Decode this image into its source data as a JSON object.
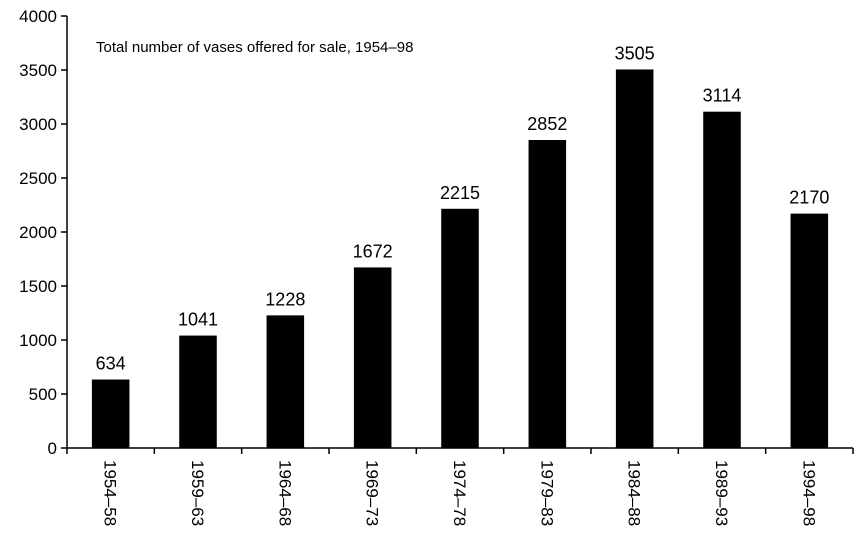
{
  "chart_data": {
    "type": "bar",
    "title": "Total number of vases offered for sale, 1954–98",
    "xlabel": "",
    "ylabel": "",
    "ylim": [
      0,
      4000
    ],
    "yticks": [
      0,
      500,
      1000,
      1500,
      2000,
      2500,
      3000,
      3500,
      4000
    ],
    "categories": [
      "1954–58",
      "1959–63",
      "1964–68",
      "1969–73",
      "1974–78",
      "1979–83",
      "1984–88",
      "1989–93",
      "1994–98"
    ],
    "values": [
      634,
      1041,
      1228,
      1672,
      2215,
      2852,
      3505,
      3114,
      2170
    ],
    "data_labels": [
      "634",
      "1041",
      "1228",
      "1672",
      "2215",
      "2852",
      "3505",
      "3114",
      "2170"
    ],
    "bar_color": "#000000",
    "grid": false,
    "legend": "none"
  }
}
